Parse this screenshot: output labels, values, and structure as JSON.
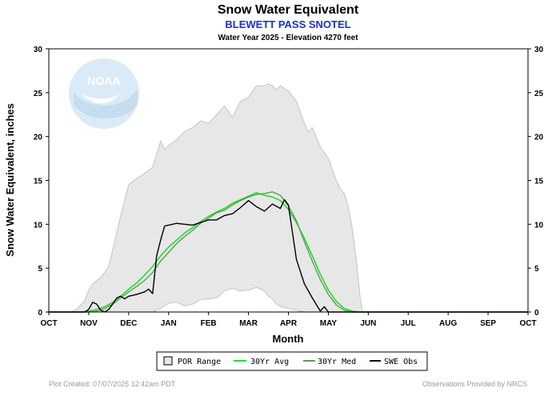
{
  "chart_data": {
    "type": "line",
    "title": "Snow Water Equivalent",
    "subtitle": "BLEWETT PASS SNOTEL",
    "subtitle2": "Water Year 2025 -  Elevation 4270 feet",
    "xlabel": "Month",
    "ylabel": "Snow Water Equivalent, inches",
    "categories": [
      "OCT",
      "NOV",
      "DEC",
      "JAN",
      "FEB",
      "MAR",
      "APR",
      "MAY",
      "JUN",
      "JUL",
      "AUG",
      "SEP",
      "OCT"
    ],
    "ylim": [
      0,
      30
    ],
    "yticks": [
      0,
      5,
      10,
      15,
      20,
      25,
      30
    ],
    "grid": false,
    "legend_position": "bottom",
    "logo_text": "NOAA",
    "footer_left": "Plot Created: 07/07/2025 12:42am PDT",
    "footer_right": "Observations Provided by NRCS",
    "colors": {
      "por_fill": "#e6e6e6",
      "por_stroke": "#c0c0c0",
      "avg": "#22dd22",
      "med": "#5c9c5c",
      "obs": "#000000",
      "logo": "#dbeaf7"
    },
    "series": [
      {
        "name": "POR Range",
        "kind": "band",
        "x": [
          0.55,
          0.7,
          0.8,
          0.9,
          1.0,
          1.1,
          1.2,
          1.3,
          1.5,
          1.7,
          1.8,
          1.9,
          2.0,
          2.2,
          2.4,
          2.6,
          2.8,
          2.9,
          3.0,
          3.2,
          3.4,
          3.6,
          3.8,
          4.0,
          4.2,
          4.4,
          4.6,
          4.8,
          5.0,
          5.2,
          5.4,
          5.5,
          5.6,
          5.7,
          5.8,
          6.0,
          6.2,
          6.4,
          6.5,
          6.6,
          6.8,
          7.0,
          7.2,
          7.3,
          7.4,
          7.5,
          7.6,
          7.7,
          7.8,
          7.85
        ],
        "upper": [
          0,
          0.3,
          0.8,
          1.3,
          2.5,
          3.2,
          3.6,
          3.9,
          5.2,
          9,
          11,
          12.7,
          14.5,
          15.2,
          15.8,
          16.5,
          19.5,
          18.5,
          19,
          19.6,
          20.6,
          21,
          21.8,
          21.5,
          22.5,
          23.5,
          22.2,
          24,
          24.5,
          25.8,
          25.8,
          26,
          25.8,
          25.3,
          25.8,
          25.2,
          24,
          21.5,
          20.5,
          21,
          18.8,
          17.5,
          15,
          14,
          13.5,
          12,
          9.5,
          6,
          1.5,
          0.3
        ],
        "lower": [
          0,
          0,
          0,
          0,
          0,
          0,
          0,
          0,
          0,
          0,
          0,
          0,
          0,
          0,
          0,
          0,
          0.4,
          0.7,
          1,
          1.1,
          0.7,
          0.9,
          1.4,
          1.5,
          1.6,
          2.4,
          2.7,
          2.4,
          2.5,
          2.8,
          2.4,
          1.8,
          1.5,
          0.9,
          0.6,
          0.4,
          0.2,
          0,
          0,
          0,
          0,
          0,
          0,
          0,
          0,
          0,
          0,
          0,
          0,
          0
        ]
      },
      {
        "name": "30Yr Avg",
        "kind": "line",
        "x": [
          0,
          0.8,
          1.0,
          1.2,
          1.4,
          1.6,
          1.8,
          2.0,
          2.2,
          2.4,
          2.6,
          2.8,
          3.0,
          3.2,
          3.4,
          3.6,
          3.8,
          4.0,
          4.2,
          4.4,
          4.6,
          4.8,
          5.0,
          5.2,
          5.4,
          5.6,
          5.8,
          6.0,
          6.2,
          6.4,
          6.6,
          6.8,
          7.0,
          7.2,
          7.4,
          7.6,
          7.8,
          8.0,
          12.0
        ],
        "values": [
          0,
          0,
          0.1,
          0.3,
          0.6,
          1.1,
          1.8,
          2.6,
          3.3,
          4.2,
          5.2,
          6.4,
          7.4,
          8.2,
          9.0,
          9.6,
          10.3,
          10.9,
          11.4,
          11.8,
          12.4,
          12.8,
          13.2,
          13.6,
          13.3,
          13.1,
          12.7,
          11.7,
          10.2,
          8.4,
          6.4,
          4.3,
          2.5,
          1.2,
          0.4,
          0.1,
          0,
          0,
          0
        ]
      },
      {
        "name": "30Yr Med",
        "kind": "line",
        "x": [
          0,
          0.8,
          1.0,
          1.2,
          1.4,
          1.6,
          1.8,
          2.0,
          2.2,
          2.4,
          2.6,
          2.8,
          3.0,
          3.2,
          3.4,
          3.6,
          3.8,
          4.0,
          4.2,
          4.4,
          4.6,
          4.8,
          5.0,
          5.2,
          5.4,
          5.6,
          5.8,
          6.0,
          6.2,
          6.4,
          6.6,
          6.8,
          7.0,
          7.2,
          7.4,
          7.6,
          7.8,
          12.0
        ],
        "values": [
          0,
          0,
          0,
          0.1,
          0.4,
          0.9,
          1.6,
          2.3,
          2.9,
          3.6,
          4.5,
          5.8,
          6.8,
          7.8,
          8.6,
          9.3,
          10.1,
          10.7,
          11.3,
          11.6,
          12.2,
          12.7,
          13.1,
          13.4,
          13.5,
          13.7,
          13.3,
          12.1,
          10.4,
          8.0,
          5.8,
          3.7,
          2.0,
          0.8,
          0.2,
          0,
          0,
          0
        ]
      },
      {
        "name": "SWE Obs",
        "kind": "line",
        "x": [
          0,
          0.9,
          1.0,
          1.1,
          1.2,
          1.3,
          1.4,
          1.5,
          1.6,
          1.7,
          1.8,
          1.9,
          2.0,
          2.2,
          2.4,
          2.5,
          2.6,
          2.7,
          2.8,
          2.9,
          3.0,
          3.2,
          3.4,
          3.6,
          3.8,
          4.0,
          4.2,
          4.4,
          4.6,
          4.8,
          5.0,
          5.2,
          5.4,
          5.6,
          5.8,
          5.9,
          6.0,
          6.2,
          6.4,
          6.6,
          6.8,
          6.9,
          7.0,
          7.2,
          7.5,
          12.0
        ],
        "values": [
          0,
          0,
          0.3,
          1.1,
          0.9,
          0.2,
          0,
          0.3,
          0.9,
          1.6,
          1.8,
          1.5,
          1.8,
          2.0,
          2.3,
          2.6,
          2.1,
          6.4,
          8.2,
          9.8,
          9.9,
          10.1,
          10.0,
          9.9,
          10.2,
          10.5,
          10.5,
          11.0,
          11.2,
          11.9,
          12.7,
          12.0,
          11.5,
          12.3,
          11.8,
          12.8,
          12.2,
          6.0,
          3.2,
          1.6,
          0.1,
          0.6,
          0,
          0,
          0,
          0
        ]
      }
    ]
  }
}
